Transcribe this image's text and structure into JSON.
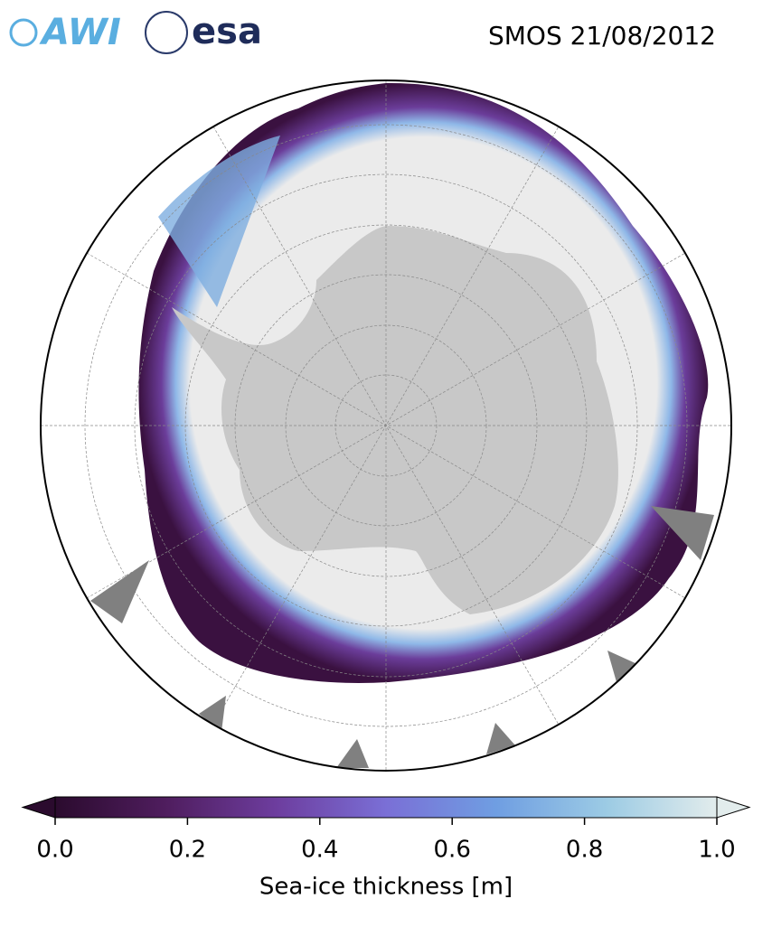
{
  "header": {
    "logo_left": "AWI",
    "logo_right": "esa",
    "title": "SMOS 21/08/2012"
  },
  "colorbar": {
    "label": "Sea-ice thickness [m]",
    "lim": [
      0,
      1
    ],
    "ticks": [
      {
        "value": 0,
        "label": "0.0"
      },
      0.2,
      0.4,
      0.6,
      0.8,
      {
        "value": 1,
        "label": "1.0"
      }
    ],
    "colors": [
      "#2b0b2e",
      "#4f1d5e",
      "#6d3d9e",
      "#7a6fd6",
      "#6f9ee2",
      "#9ccbe4",
      "#e2ecec"
    ]
  }
}
